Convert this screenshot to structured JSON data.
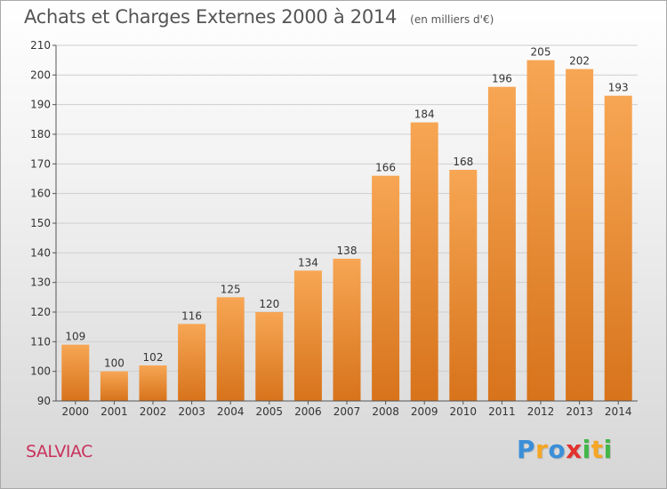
{
  "title": "Achats et Charges Externes 2000 à 2014",
  "unit": "(en milliers d'€)",
  "location": "SALVIAC",
  "logo": {
    "text": "Proxiti",
    "letters": [
      {
        "ch": "P",
        "color": "#3a8fd8"
      },
      {
        "ch": "r",
        "color": "#f5a623"
      },
      {
        "ch": "o",
        "color": "#3a8fd8"
      },
      {
        "ch": "x",
        "color": "#e2322d"
      },
      {
        "ch": "i",
        "color": "#43b649"
      },
      {
        "ch": "t",
        "color": "#f5a623"
      },
      {
        "ch": "i",
        "color": "#43b649"
      }
    ]
  },
  "colors": {
    "bar_light": "#f7a654",
    "bar_dark": "#d7731b",
    "axis": "#555555",
    "grid": "#cfcfcf",
    "location": "#c8325c"
  },
  "chart_data": {
    "type": "bar",
    "categories": [
      "2000",
      "2001",
      "2002",
      "2003",
      "2004",
      "2005",
      "2006",
      "2007",
      "2008",
      "2009",
      "2010",
      "2011",
      "2012",
      "2013",
      "2014"
    ],
    "values": [
      109,
      100,
      102,
      116,
      125,
      120,
      134,
      138,
      166,
      184,
      168,
      196,
      205,
      202,
      193
    ],
    "ylim": [
      90,
      210
    ],
    "yticks": [
      90,
      100,
      110,
      120,
      130,
      140,
      150,
      160,
      170,
      180,
      190,
      200,
      210
    ],
    "title": "Achats et Charges Externes 2000 à 2014",
    "xlabel": "",
    "ylabel": "",
    "grid": true,
    "legend": "none",
    "data_labels": true
  }
}
